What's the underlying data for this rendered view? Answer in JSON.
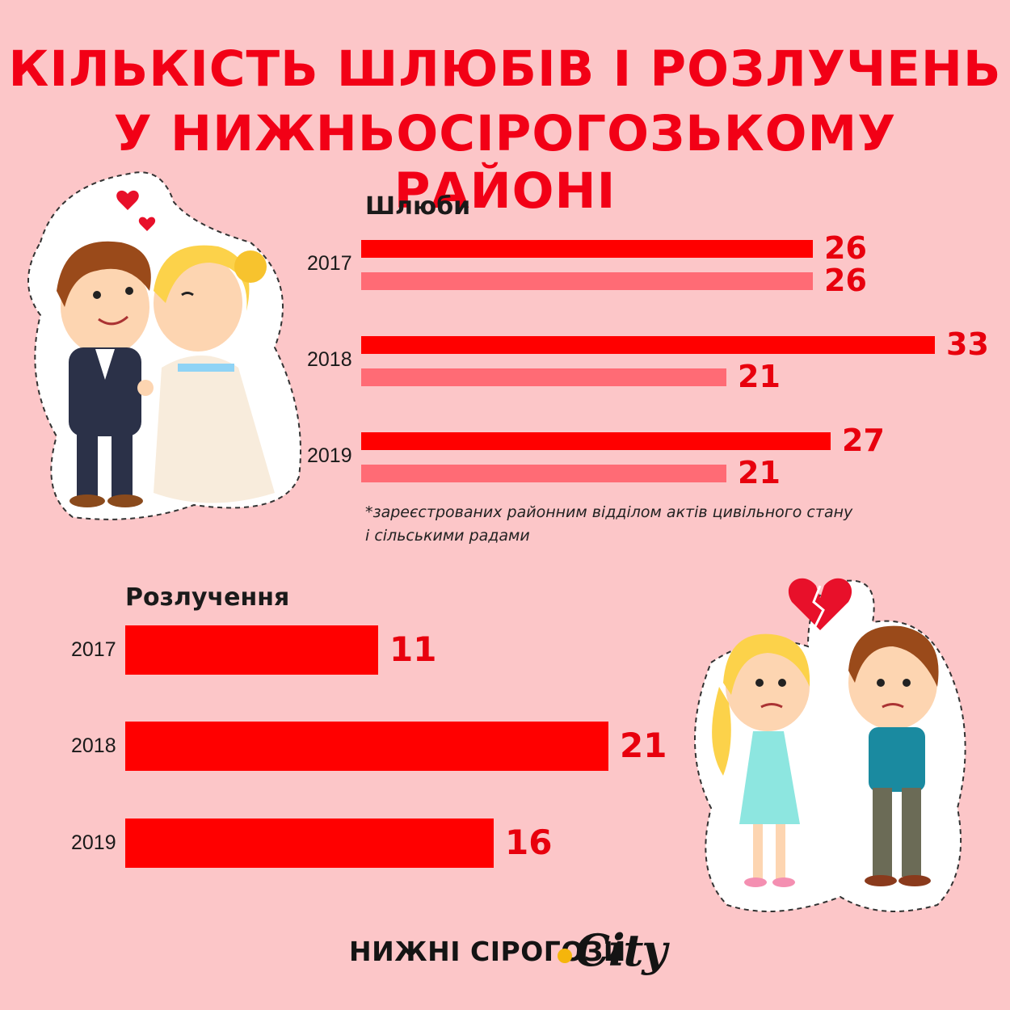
{
  "title_line1": "КІЛЬКІСТЬ ШЛЮБІВ І РОЗЛУЧЕНЬ",
  "title_line2": "У НИЖНЬОСІРОГОЗЬКОМУ РАЙОНІ",
  "colors": {
    "background": "#fcc6c8",
    "accent_red": "#ff0000",
    "light_red": "#ff6b75",
    "value_text": "#e8000d"
  },
  "marriages_label": "Шлюби",
  "divorces_label": "Розлучення",
  "footnote": [
    "*зареєстрованих районним відділом актів цивільного стану",
    " і сільськими радами"
  ],
  "logo": {
    "text": "НИЖНІ СІРОГОЗИ",
    "city": "City"
  },
  "chart_data": [
    {
      "type": "bar",
      "title": "Шлюби",
      "categories": [
        "2017",
        "2018",
        "2019"
      ],
      "series": [
        {
          "values": [
            26,
            33,
            27
          ],
          "color": "#ff0000"
        },
        {
          "values": [
            26,
            21,
            21
          ],
          "color": "#ff6b75"
        }
      ],
      "orientation": "horizontal",
      "xlim": [
        0,
        33
      ],
      "grid": false
    },
    {
      "type": "bar",
      "title": "Розлучення",
      "categories": [
        "2017",
        "2018",
        "2019"
      ],
      "values": [
        11,
        21,
        16
      ],
      "orientation": "horizontal",
      "xlim": [
        0,
        21
      ],
      "grid": false
    }
  ]
}
